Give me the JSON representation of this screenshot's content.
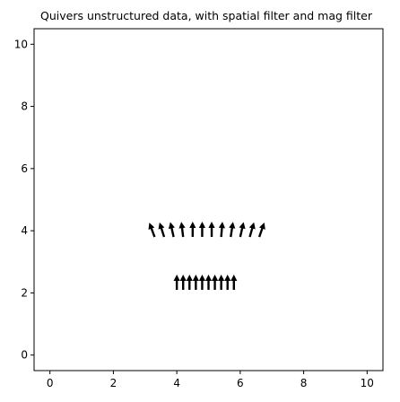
{
  "chart_data": {
    "type": "quiver",
    "title": "Quivers unstructured data, with spatial filter and mag filter",
    "xlabel": "",
    "ylabel": "",
    "xlim": [
      -0.5,
      10.5
    ],
    "ylim": [
      -0.5,
      10.5
    ],
    "xticks": [
      0,
      2,
      4,
      6,
      8,
      10
    ],
    "yticks": [
      0,
      2,
      4,
      6,
      8,
      10
    ],
    "grid": false,
    "arrow_color": "#000000",
    "series": [
      {
        "points": [
          {
            "x": 4.0,
            "y": 2.1,
            "u": 0.0,
            "v": 1.0
          },
          {
            "x": 4.2,
            "y": 2.1,
            "u": 0.0,
            "v": 1.0
          },
          {
            "x": 4.4,
            "y": 2.1,
            "u": 0.0,
            "v": 1.0
          },
          {
            "x": 4.6,
            "y": 2.1,
            "u": 0.0,
            "v": 1.0
          },
          {
            "x": 4.8,
            "y": 2.1,
            "u": 0.0,
            "v": 1.0
          },
          {
            "x": 5.0,
            "y": 2.1,
            "u": 0.0,
            "v": 1.0
          },
          {
            "x": 5.2,
            "y": 2.1,
            "u": 0.0,
            "v": 1.0
          },
          {
            "x": 5.4,
            "y": 2.1,
            "u": 0.0,
            "v": 1.0
          },
          {
            "x": 5.6,
            "y": 2.1,
            "u": 0.0,
            "v": 1.0
          },
          {
            "x": 5.8,
            "y": 2.1,
            "u": 0.0,
            "v": 1.0
          },
          {
            "x": 3.3,
            "y": 3.8,
            "u": -0.35,
            "v": 0.94
          },
          {
            "x": 3.6,
            "y": 3.8,
            "u": -0.3,
            "v": 0.95
          },
          {
            "x": 3.9,
            "y": 3.8,
            "u": -0.22,
            "v": 0.97
          },
          {
            "x": 4.2,
            "y": 3.8,
            "u": -0.12,
            "v": 0.99
          },
          {
            "x": 4.5,
            "y": 3.8,
            "u": 0.0,
            "v": 1.0
          },
          {
            "x": 4.8,
            "y": 3.8,
            "u": 0.0,
            "v": 1.0
          },
          {
            "x": 5.1,
            "y": 3.8,
            "u": 0.0,
            "v": 1.0
          },
          {
            "x": 5.4,
            "y": 3.8,
            "u": 0.08,
            "v": 1.0
          },
          {
            "x": 5.7,
            "y": 3.8,
            "u": 0.15,
            "v": 0.99
          },
          {
            "x": 6.0,
            "y": 3.8,
            "u": 0.22,
            "v": 0.97
          },
          {
            "x": 6.3,
            "y": 3.8,
            "u": 0.28,
            "v": 0.96
          },
          {
            "x": 6.6,
            "y": 3.8,
            "u": 0.33,
            "v": 0.94
          }
        ]
      }
    ]
  }
}
